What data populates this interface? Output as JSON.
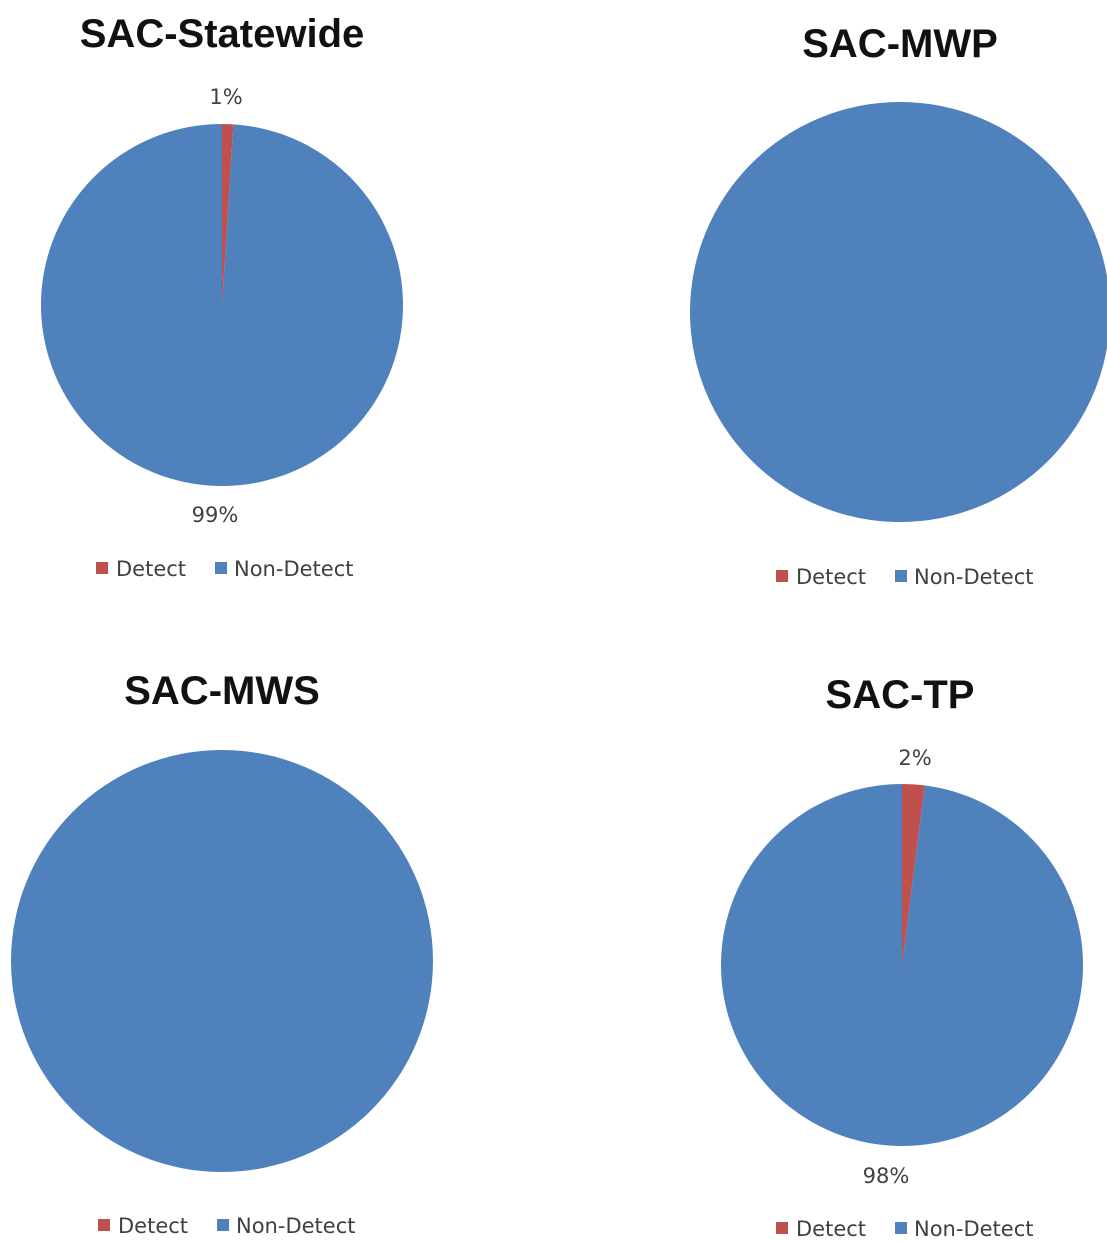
{
  "colors": {
    "detect": "#c0504d",
    "non_detect": "#4f81bd"
  },
  "chart_data": [
    {
      "type": "pie",
      "title": "SAC-Statewide",
      "categories": [
        "Detect",
        "Non-Detect"
      ],
      "values": [
        1,
        99
      ],
      "data_labels": [
        "1%",
        "99%"
      ],
      "legend": [
        "Detect",
        "Non-Detect"
      ],
      "legend_position": "bottom"
    },
    {
      "type": "pie",
      "title": "SAC-MWP",
      "categories": [
        "Detect",
        "Non-Detect"
      ],
      "values": [
        0,
        100
      ],
      "data_labels": [],
      "legend": [
        "Detect",
        "Non-Detect"
      ],
      "legend_position": "bottom"
    },
    {
      "type": "pie",
      "title": "SAC-MWS",
      "categories": [
        "Detect",
        "Non-Detect"
      ],
      "values": [
        0,
        100
      ],
      "data_labels": [],
      "legend": [
        "Detect",
        "Non-Detect"
      ],
      "legend_position": "bottom"
    },
    {
      "type": "pie",
      "title": "SAC-TP",
      "categories": [
        "Detect",
        "Non-Detect"
      ],
      "values": [
        2,
        98
      ],
      "data_labels": [
        "2%",
        "98%"
      ],
      "legend": [
        "Detect",
        "Non-Detect"
      ],
      "legend_position": "bottom"
    }
  ]
}
